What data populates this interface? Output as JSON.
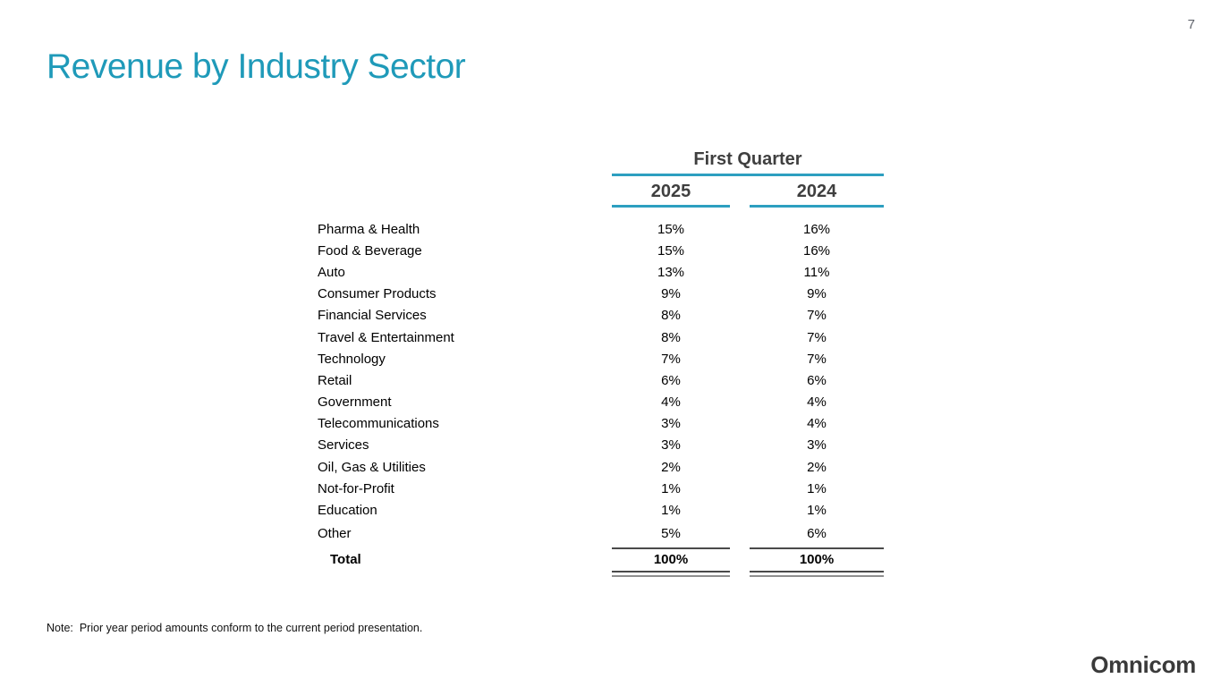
{
  "page": {
    "number": "7"
  },
  "title": "Revenue by Industry Sector",
  "table": {
    "group_header": "First Quarter",
    "columns": {
      "col1": "2025",
      "col2": "2024"
    },
    "rows": [
      {
        "label": "Pharma & Health",
        "y2025": "15%",
        "y2024": "16%"
      },
      {
        "label": "Food & Beverage",
        "y2025": "15%",
        "y2024": "16%"
      },
      {
        "label": "Auto",
        "y2025": "13%",
        "y2024": "11%"
      },
      {
        "label": "Consumer Products",
        "y2025": "9%",
        "y2024": "9%"
      },
      {
        "label": "Financial Services",
        "y2025": "8%",
        "y2024": "7%"
      },
      {
        "label": "Travel & Entertainment",
        "y2025": "8%",
        "y2024": "7%"
      },
      {
        "label": "Technology",
        "y2025": "7%",
        "y2024": "7%"
      },
      {
        "label": "Retail",
        "y2025": "6%",
        "y2024": "6%"
      },
      {
        "label": "Government",
        "y2025": "4%",
        "y2024": "4%"
      },
      {
        "label": "Telecommunications",
        "y2025": "3%",
        "y2024": "4%"
      },
      {
        "label": "Services",
        "y2025": "3%",
        "y2024": "3%"
      },
      {
        "label": "Oil, Gas & Utilities",
        "y2025": "2%",
        "y2024": "2%"
      },
      {
        "label": "Not-for-Profit",
        "y2025": "1%",
        "y2024": "1%"
      },
      {
        "label": "Education",
        "y2025": "1%",
        "y2024": "1%"
      },
      {
        "label": "Other",
        "y2025": "5%",
        "y2024": "6%"
      }
    ],
    "total": {
      "label": "Total",
      "y2025": "100%",
      "y2024": "100%"
    }
  },
  "note": "Note:  Prior year period amounts conform to the current period presentation.",
  "logo_text": "Omnicom",
  "colors": {
    "accent_teal": "#2d9fc0",
    "title_teal": "#1f9ab9",
    "header_text": "#3f3f3f",
    "body_text": "#000000",
    "rule_dark": "#4a4a4a",
    "rule_gray": "#8f8f8f",
    "page_number_gray": "#5f636b"
  }
}
